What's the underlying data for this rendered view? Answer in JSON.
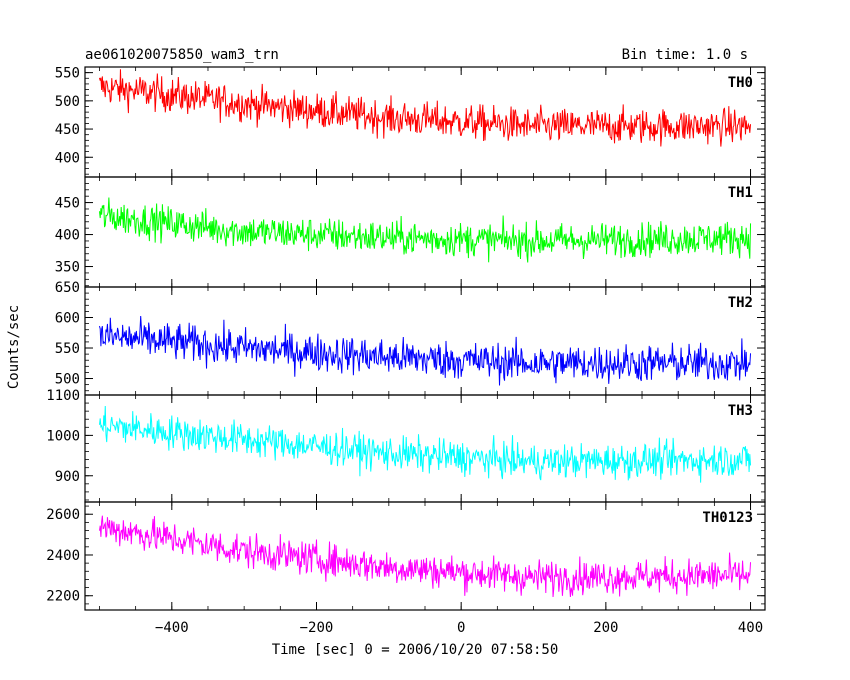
{
  "header": {
    "title": "ae061020075850_wam3_trn",
    "bin_time": "Bin time: 1.0 s"
  },
  "chart_data": {
    "type": "line",
    "xlabel": "Time [sec] 0 = 2006/10/20 07:58:50",
    "ylabel": "Counts/sec",
    "xlim": [
      -520,
      420
    ],
    "x_ticks": [
      -400,
      -200,
      0,
      200,
      400
    ],
    "x_data_range": [
      -500,
      400
    ],
    "panels": [
      {
        "name": "TH0",
        "color": "#ff0000",
        "ylim": [
          365,
          560
        ],
        "y_ticks": [
          400,
          450,
          500,
          550
        ],
        "trend": [
          [
            -500,
            525
          ],
          [
            -300,
            495
          ],
          [
            -100,
            470
          ],
          [
            100,
            455
          ],
          [
            400,
            455
          ]
        ],
        "noise_amplitude": 28
      },
      {
        "name": "TH1",
        "color": "#00ff00",
        "ylim": [
          318,
          490
        ],
        "y_ticks": [
          350,
          400,
          450
        ],
        "trend": [
          [
            -500,
            430
          ],
          [
            -300,
            405
          ],
          [
            -100,
            395
          ],
          [
            100,
            390
          ],
          [
            400,
            395
          ]
        ],
        "noise_amplitude": 24
      },
      {
        "name": "TH2",
        "color": "#0000ff",
        "ylim": [
          473,
          650
        ],
        "y_ticks": [
          500,
          550,
          600,
          650
        ],
        "trend": [
          [
            -500,
            570
          ],
          [
            -300,
            550
          ],
          [
            -100,
            535
          ],
          [
            100,
            525
          ],
          [
            400,
            525
          ]
        ],
        "noise_amplitude": 28
      },
      {
        "name": "TH3",
        "color": "#00ffff",
        "ylim": [
          835,
          1100
        ],
        "y_ticks": [
          900,
          1000,
          1100
        ],
        "trend": [
          [
            -500,
            1025
          ],
          [
            -300,
            990
          ],
          [
            -100,
            955
          ],
          [
            100,
            935
          ],
          [
            400,
            940
          ]
        ],
        "noise_amplitude": 38
      },
      {
        "name": "TH0123",
        "color": "#ff00ff",
        "ylim": [
          2130,
          2660
        ],
        "y_ticks": [
          2200,
          2400,
          2600
        ],
        "trend": [
          [
            -500,
            2540
          ],
          [
            -300,
            2420
          ],
          [
            -100,
            2340
          ],
          [
            100,
            2290
          ],
          [
            400,
            2300
          ]
        ],
        "noise_amplitude": 75
      }
    ]
  }
}
